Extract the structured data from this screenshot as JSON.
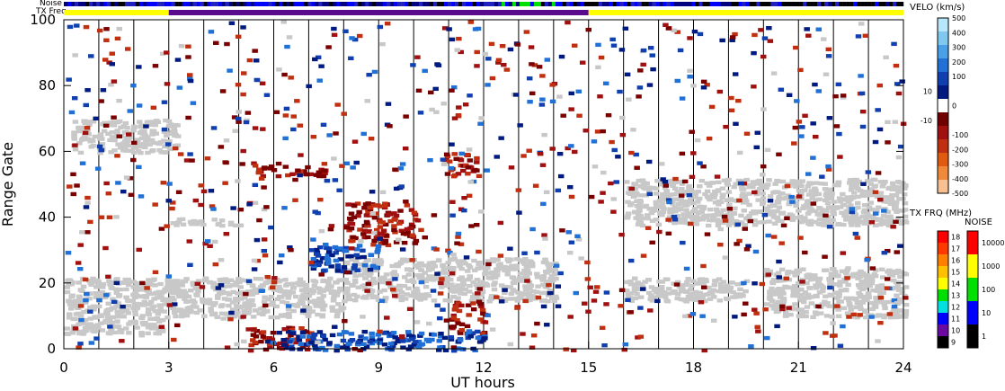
{
  "chart_data": {
    "type": "heatmap",
    "title": "",
    "xlabel": "UT hours",
    "ylabel": "Range Gate",
    "xlim": [
      0,
      24
    ],
    "ylim": [
      0,
      100
    ],
    "x_ticks": [
      "0",
      "3",
      "6",
      "9",
      "12",
      "15",
      "18",
      "21",
      "24"
    ],
    "y_ticks": [
      "0",
      "20",
      "40",
      "60",
      "80",
      "100"
    ],
    "grid": "vertical lines each hour",
    "strip_labels": {
      "noise": "Noise",
      "tx_freq": "TX Freq"
    },
    "tx_freq_strip": [
      {
        "start": 0,
        "end": 3,
        "color": "#ffff00"
      },
      {
        "start": 3,
        "end": 15,
        "color": "#5a0a8c"
      },
      {
        "start": 15,
        "end": 24,
        "color": "#ffff00"
      }
    ],
    "velocity_colorbar": {
      "title": "VELO (km/s)",
      "ticks": [
        "500",
        "400",
        "300",
        "200",
        "100",
        "10",
        "0",
        "-10",
        "-100",
        "-200",
        "-300",
        "-400",
        "-500"
      ],
      "colors": [
        "#b8e6fa",
        "#80c8f0",
        "#4aa0e6",
        "#2070d6",
        "#1040b0",
        "#001a80",
        "#ffffff",
        "#700000",
        "#a01010",
        "#c03010",
        "#e05a10",
        "#f08a3a",
        "#f8c090"
      ]
    },
    "txfreq_colorbar": {
      "title": "TX FRQ (MHz)",
      "ticks": [
        "18",
        "17",
        "16",
        "15",
        "14",
        "13",
        "12",
        "11",
        "10",
        "9"
      ],
      "colors": [
        "#ff0000",
        "#ff3a00",
        "#ff8000",
        "#ffc000",
        "#ffff00",
        "#00e000",
        "#00e0e0",
        "#0000ff",
        "#6a0aa0",
        "#000000"
      ]
    },
    "noise_colorbar": {
      "title": "NOISE",
      "ticks": [
        "10000",
        "1000",
        "100",
        "10",
        "1"
      ],
      "colors": [
        "#ff0000",
        "#ffff00",
        "#00e000",
        "#0000ff",
        "#000000"
      ]
    },
    "series": [
      {
        "name": "ground scatter",
        "color": "#c8c8c8",
        "regions": [
          {
            "x": [
              0,
              3
            ],
            "gates": [
              5,
              22
            ]
          },
          {
            "x": [
              3,
              8
            ],
            "gates": [
              10,
              22
            ]
          },
          {
            "x": [
              8,
              14
            ],
            "gates": [
              15,
              28
            ]
          },
          {
            "x": [
              0.2,
              3.2
            ],
            "gates": [
              60,
              70
            ]
          },
          {
            "x": [
              16,
              24
            ],
            "gates": [
              38,
              52
            ]
          },
          {
            "x": [
              16,
              19.5
            ],
            "gates": [
              15,
              22
            ]
          },
          {
            "x": [
              20,
              24
            ],
            "gates": [
              10,
              25
            ]
          },
          {
            "x": [
              3,
              5
            ],
            "gates": [
              38,
              40
            ]
          }
        ]
      },
      {
        "name": "negative velocity",
        "color": "#7a0000",
        "regions": [
          {
            "x": [
              5.2,
              7
            ],
            "gates": [
              0,
              7
            ]
          },
          {
            "x": [
              8,
              10
            ],
            "gates": [
              32,
              45
            ]
          },
          {
            "x": [
              10.8,
              11.8
            ],
            "gates": [
              52,
              60
            ]
          },
          {
            "x": [
              11,
              12
            ],
            "gates": [
              5,
              15
            ]
          },
          {
            "x": [
              5,
              7.5
            ],
            "gates": [
              53,
              57
            ]
          }
        ]
      },
      {
        "name": "positive velocity",
        "color": "#001a80",
        "regions": [
          {
            "x": [
              6,
              9
            ],
            "gates": [
              0,
              6
            ]
          },
          {
            "x": [
              9,
              12
            ],
            "gates": [
              0,
              6
            ]
          },
          {
            "x": [
              7,
              9
            ],
            "gates": [
              24,
              32
            ]
          }
        ]
      }
    ]
  }
}
